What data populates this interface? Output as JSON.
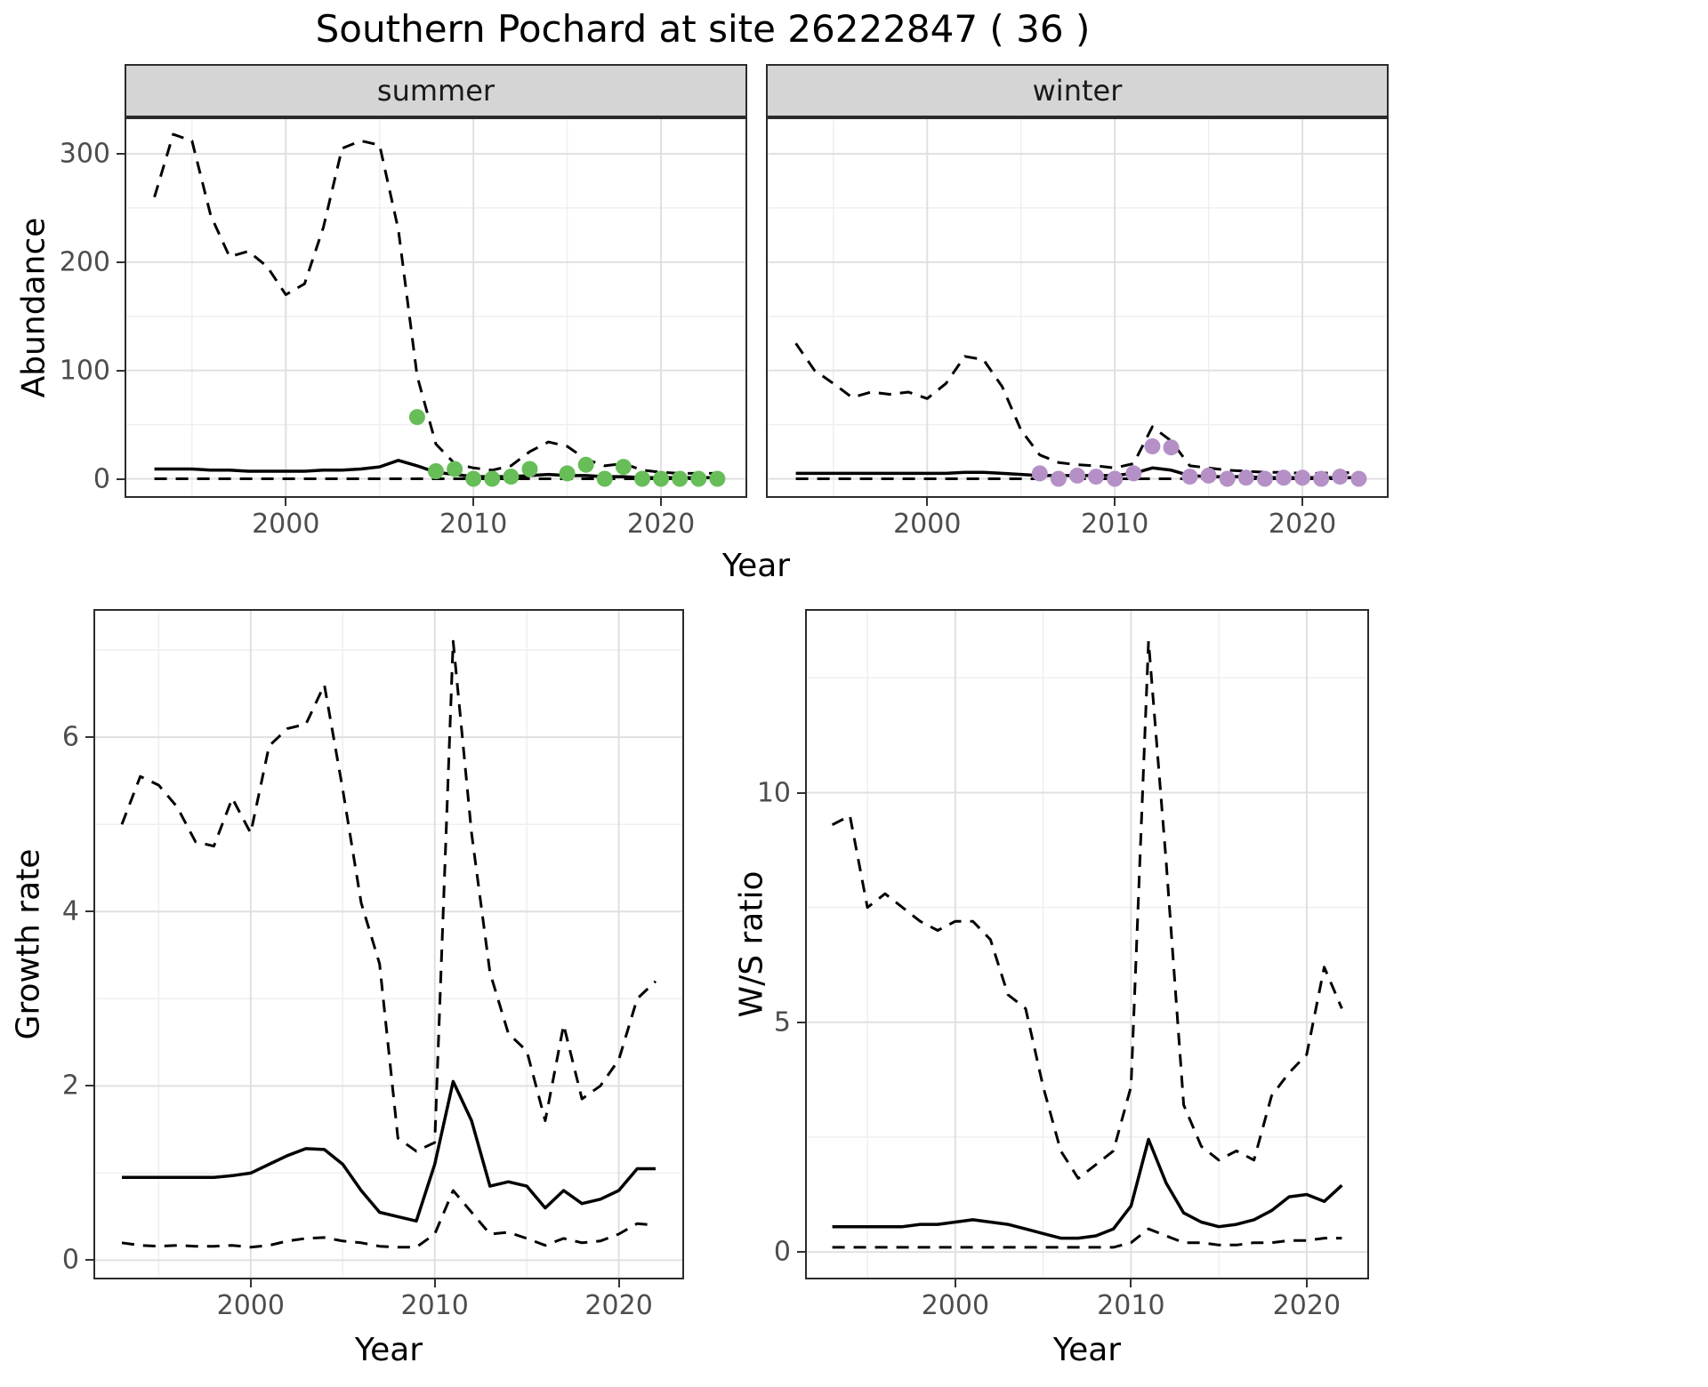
{
  "title": "Southern Pochard at site 26222847 ( 36 )",
  "colors": {
    "summer_points": "#67bd58",
    "winter_points": "#b590c7",
    "line": "#000000",
    "grid_major": "#e0e0e0",
    "grid_minor": "#efefef",
    "panel_border": "#2b2b2b",
    "strip_background": "#d5d5d5",
    "axis_text": "#4d4d4d"
  },
  "abundance_plot": {
    "ylabel": "Abundance",
    "xlabel": "Year",
    "facets": [
      {
        "label": "summer"
      },
      {
        "label": "winter"
      }
    ]
  },
  "growth_plot": {
    "ylabel": "Growth rate",
    "xlabel": "Year"
  },
  "ratio_plot": {
    "ylabel": "W/S ratio",
    "xlabel": "Year"
  },
  "chart_data": [
    {
      "id": "abundance-summer",
      "type": "line",
      "facet": "summer",
      "xlim": [
        1991.5,
        2024.5
      ],
      "ylim": [
        -16,
        332
      ],
      "x_major_ticks": [
        2000,
        2010,
        2020
      ],
      "x_minor_ticks": [
        1995,
        2005,
        2015
      ],
      "y_major_ticks": [
        0,
        100,
        200,
        300
      ],
      "y_minor_ticks": [
        50,
        150,
        250
      ],
      "show_y_labels": true,
      "x": [
        1993,
        1994,
        1995,
        1996,
        1997,
        1998,
        1999,
        2000,
        2001,
        2002,
        2003,
        2004,
        2005,
        2006,
        2007,
        2008,
        2009,
        2010,
        2011,
        2012,
        2013,
        2014,
        2015,
        2016,
        2017,
        2018,
        2019,
        2020,
        2021,
        2022,
        2023
      ],
      "series": [
        {
          "name": "upper_ci",
          "style": "dashed",
          "y": [
            260,
            318,
            312,
            243,
            205,
            210,
            196,
            170,
            180,
            232,
            305,
            312,
            308,
            230,
            95,
            32,
            14,
            10,
            8,
            12,
            25,
            34,
            30,
            18,
            12,
            14,
            8,
            6,
            5,
            5,
            5
          ]
        },
        {
          "name": "median",
          "style": "solid",
          "y": [
            9,
            9,
            9,
            8,
            8,
            7,
            7,
            7,
            7,
            8,
            8,
            9,
            11,
            17,
            12,
            6,
            4,
            2,
            2,
            2,
            3,
            4,
            3,
            3,
            2,
            2,
            1,
            1,
            1,
            1,
            1
          ]
        },
        {
          "name": "lower_ci",
          "style": "dashed",
          "y": [
            0,
            0,
            0,
            0,
            0,
            0,
            0,
            0,
            0,
            0,
            0,
            0,
            0,
            0,
            0,
            0,
            0,
            0,
            0,
            0,
            0,
            0,
            0,
            0,
            0,
            0,
            0,
            0,
            0,
            0,
            0
          ]
        }
      ],
      "points": {
        "name": "observed-counts-summer",
        "color": "#67bd58",
        "x": [
          2007,
          2008,
          2009,
          2010,
          2011,
          2012,
          2013,
          2015,
          2016,
          2017,
          2018,
          2019,
          2020,
          2021,
          2022,
          2023
        ],
        "y": [
          57,
          7,
          9,
          0,
          0,
          2,
          9,
          5,
          13,
          0,
          11,
          0,
          0,
          0,
          0,
          0
        ]
      }
    },
    {
      "id": "abundance-winter",
      "type": "line",
      "facet": "winter",
      "xlim": [
        1991.5,
        2024.5
      ],
      "ylim": [
        -16,
        332
      ],
      "x_major_ticks": [
        2000,
        2010,
        2020
      ],
      "x_minor_ticks": [
        1995,
        2005,
        2015
      ],
      "y_major_ticks": [
        0,
        100,
        200,
        300
      ],
      "y_minor_ticks": [
        50,
        150,
        250
      ],
      "show_y_labels": false,
      "x": [
        1993,
        1994,
        1995,
        1996,
        1997,
        1998,
        1999,
        2000,
        2001,
        2002,
        2003,
        2004,
        2005,
        2006,
        2007,
        2008,
        2009,
        2010,
        2011,
        2012,
        2013,
        2014,
        2015,
        2016,
        2017,
        2018,
        2019,
        2020,
        2021,
        2022,
        2023
      ],
      "series": [
        {
          "name": "upper_ci",
          "style": "dashed",
          "y": [
            125,
            100,
            88,
            75,
            80,
            78,
            80,
            74,
            88,
            113,
            110,
            85,
            45,
            22,
            15,
            13,
            12,
            10,
            14,
            48,
            35,
            12,
            10,
            8,
            7,
            6,
            6,
            5,
            5,
            6,
            5
          ]
        },
        {
          "name": "median",
          "style": "solid",
          "y": [
            5,
            5,
            5,
            5,
            5,
            5,
            5,
            5,
            5,
            6,
            6,
            5,
            4,
            3,
            3,
            3,
            3,
            3,
            5,
            10,
            8,
            3,
            2,
            2,
            2,
            1,
            1,
            1,
            1,
            1,
            1
          ]
        },
        {
          "name": "lower_ci",
          "style": "dashed",
          "y": [
            0,
            0,
            0,
            0,
            0,
            0,
            0,
            0,
            0,
            0,
            0,
            0,
            0,
            0,
            0,
            0,
            0,
            0,
            0,
            0,
            0,
            0,
            0,
            0,
            0,
            0,
            0,
            0,
            0,
            0,
            0
          ]
        }
      ],
      "points": {
        "name": "observed-counts-winter",
        "color": "#b590c7",
        "x": [
          2006,
          2007,
          2008,
          2009,
          2010,
          2011,
          2012,
          2013,
          2014,
          2015,
          2016,
          2017,
          2018,
          2019,
          2020,
          2021,
          2022,
          2023
        ],
        "y": [
          5,
          0,
          3,
          2,
          0,
          5,
          30,
          29,
          2,
          3,
          0,
          1,
          0,
          1,
          1,
          0,
          2,
          0
        ]
      }
    },
    {
      "id": "growth-rate",
      "type": "line",
      "xlim": [
        1991.55,
        2023.45
      ],
      "ylim": [
        -0.2,
        7.45
      ],
      "x_major_ticks": [
        2000,
        2010,
        2020
      ],
      "x_minor_ticks": [
        1995,
        2005,
        2015
      ],
      "y_major_ticks": [
        0,
        2,
        4,
        6
      ],
      "y_minor_ticks": [
        1,
        3,
        5,
        7
      ],
      "show_y_labels": true,
      "x": [
        1993,
        1994,
        1995,
        1996,
        1997,
        1998,
        1999,
        2000,
        2001,
        2002,
        2003,
        2004,
        2005,
        2006,
        2007,
        2008,
        2009,
        2010,
        2011,
        2012,
        2013,
        2014,
        2015,
        2016,
        2017,
        2018,
        2019,
        2020,
        2021,
        2022
      ],
      "series": [
        {
          "name": "upper_ci",
          "style": "dashed",
          "y": [
            5.0,
            5.55,
            5.45,
            5.2,
            4.8,
            4.75,
            5.3,
            4.9,
            5.9,
            6.1,
            6.15,
            6.6,
            5.4,
            4.1,
            3.4,
            1.4,
            1.25,
            1.35,
            7.1,
            4.9,
            3.3,
            2.6,
            2.4,
            1.6,
            2.7,
            1.85,
            2.0,
            2.3,
            3.0,
            3.2
          ]
        },
        {
          "name": "median",
          "style": "solid",
          "y": [
            0.95,
            0.95,
            0.95,
            0.95,
            0.95,
            0.95,
            0.97,
            1.0,
            1.1,
            1.2,
            1.28,
            1.27,
            1.1,
            0.8,
            0.55,
            0.5,
            0.45,
            1.1,
            2.05,
            1.6,
            0.85,
            0.9,
            0.85,
            0.6,
            0.8,
            0.65,
            0.7,
            0.8,
            1.05,
            1.05
          ]
        },
        {
          "name": "lower_ci",
          "style": "dashed",
          "y": [
            0.2,
            0.17,
            0.16,
            0.17,
            0.16,
            0.16,
            0.17,
            0.15,
            0.17,
            0.22,
            0.25,
            0.26,
            0.22,
            0.2,
            0.16,
            0.15,
            0.15,
            0.3,
            0.8,
            0.55,
            0.3,
            0.32,
            0.25,
            0.17,
            0.25,
            0.2,
            0.22,
            0.3,
            0.42,
            0.4
          ]
        }
      ]
    },
    {
      "id": "ws-ratio",
      "type": "line",
      "xlim": [
        1991.55,
        2023.45
      ],
      "ylim": [
        -0.56,
        13.96
      ],
      "x_major_ticks": [
        2000,
        2010,
        2020
      ],
      "x_minor_ticks": [
        1995,
        2005,
        2015
      ],
      "y_major_ticks": [
        0,
        5,
        10
      ],
      "y_minor_ticks": [
        2.5,
        7.5,
        12.5
      ],
      "show_y_labels": true,
      "x": [
        1993,
        1994,
        1995,
        1996,
        1997,
        1998,
        1999,
        2000,
        2001,
        2002,
        2003,
        2004,
        2005,
        2006,
        2007,
        2008,
        2009,
        2010,
        2011,
        2012,
        2013,
        2014,
        2015,
        2016,
        2017,
        2018,
        2019,
        2020,
        2021,
        2022
      ],
      "series": [
        {
          "name": "upper_ci",
          "style": "dashed",
          "y": [
            9.3,
            9.5,
            7.5,
            7.8,
            7.5,
            7.2,
            7.0,
            7.2,
            7.2,
            6.8,
            5.6,
            5.3,
            3.6,
            2.2,
            1.6,
            1.9,
            2.2,
            3.6,
            13.3,
            8.5,
            3.2,
            2.3,
            2.0,
            2.2,
            2.0,
            3.4,
            3.9,
            4.3,
            6.2,
            5.3
          ]
        },
        {
          "name": "median",
          "style": "solid",
          "y": [
            0.55,
            0.55,
            0.55,
            0.55,
            0.55,
            0.6,
            0.6,
            0.65,
            0.7,
            0.65,
            0.6,
            0.5,
            0.4,
            0.3,
            0.3,
            0.35,
            0.5,
            1.0,
            2.45,
            1.5,
            0.85,
            0.65,
            0.55,
            0.6,
            0.7,
            0.9,
            1.2,
            1.25,
            1.1,
            1.45
          ]
        },
        {
          "name": "lower_ci",
          "style": "dashed",
          "y": [
            0.1,
            0.1,
            0.1,
            0.1,
            0.1,
            0.1,
            0.1,
            0.1,
            0.1,
            0.1,
            0.1,
            0.1,
            0.1,
            0.1,
            0.1,
            0.1,
            0.1,
            0.2,
            0.5,
            0.35,
            0.2,
            0.2,
            0.15,
            0.15,
            0.2,
            0.2,
            0.25,
            0.25,
            0.3,
            0.3
          ]
        }
      ]
    }
  ]
}
